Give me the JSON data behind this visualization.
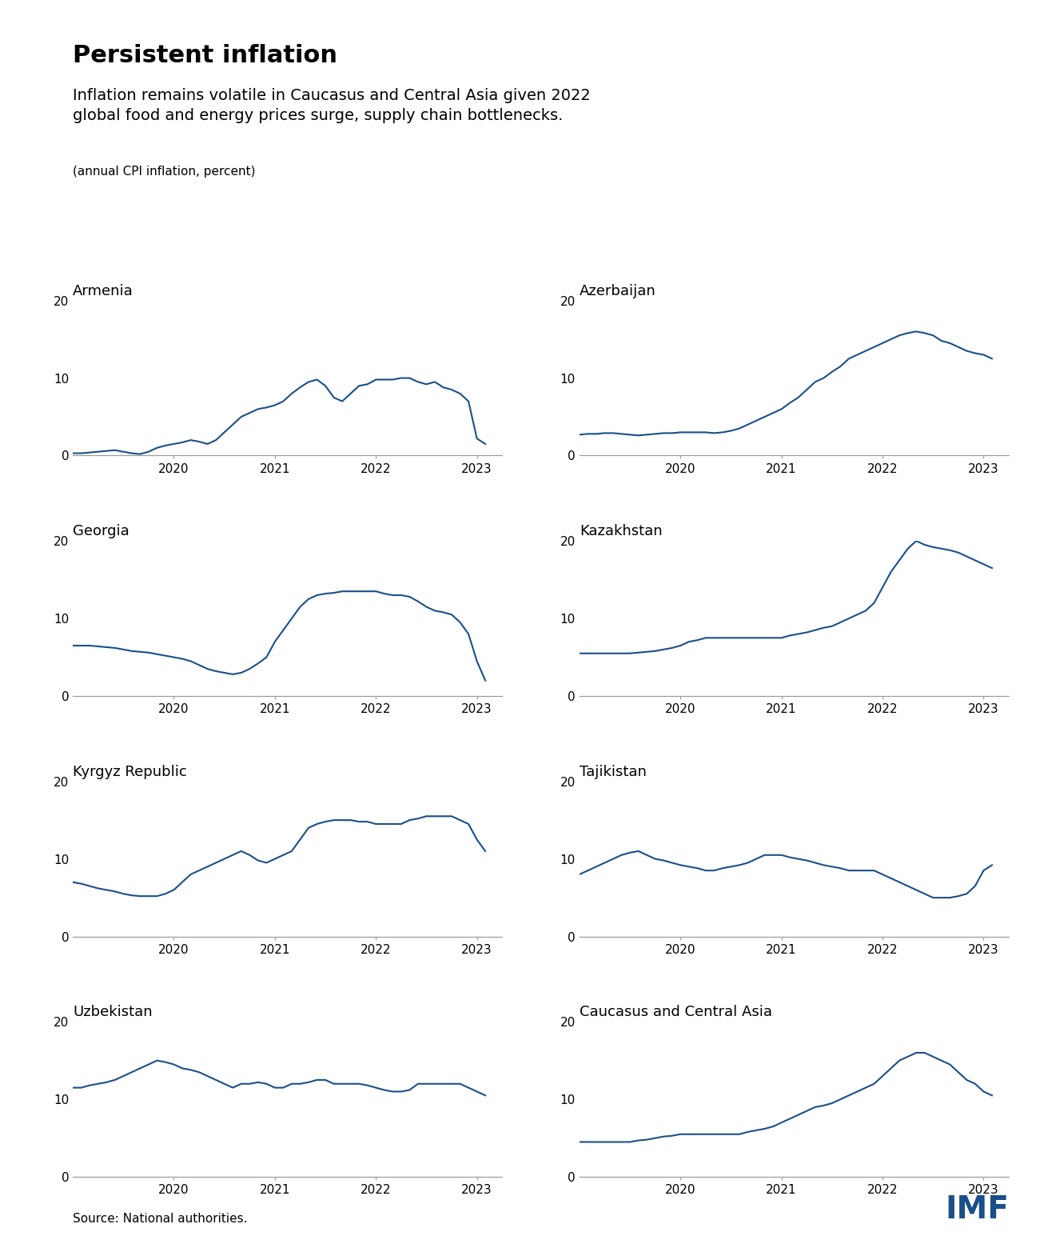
{
  "title": "Persistent inflation",
  "subtitle": "Inflation remains volatile in Caucasus and Central Asia given 2022\nglobal food and energy prices surge, supply chain bottlenecks.",
  "caption": "(annual CPI inflation, percent)",
  "source": "Source: National authorities.",
  "line_color": "#1b4f8a",
  "background_color": "#ffffff",
  "ylim": [
    0,
    20
  ],
  "yticks": [
    0,
    10,
    20
  ],
  "xlim": [
    2019.0,
    2023.25
  ],
  "xticks": [
    2020,
    2021,
    2022,
    2023
  ],
  "xticklabels": [
    "2020",
    "2021",
    "2022",
    "2023"
  ],
  "panels": [
    {
      "title": "Armenia",
      "y": [
        0.3,
        0.3,
        0.4,
        0.5,
        0.6,
        0.7,
        0.5,
        0.3,
        0.2,
        0.5,
        1.0,
        1.3,
        1.5,
        1.7,
        2.0,
        1.8,
        1.5,
        2.0,
        3.0,
        4.0,
        5.0,
        5.5,
        6.0,
        6.2,
        6.5,
        7.0,
        8.0,
        8.8,
        9.5,
        9.8,
        9.0,
        7.5,
        7.0,
        8.0,
        9.0,
        9.2,
        9.8,
        9.8,
        9.8,
        10.0,
        10.0,
        9.5,
        9.2,
        9.5,
        8.8,
        8.5,
        8.0,
        7.0,
        2.2,
        1.5
      ]
    },
    {
      "title": "Azerbaijan",
      "y": [
        2.7,
        2.8,
        2.8,
        2.9,
        2.9,
        2.8,
        2.7,
        2.6,
        2.7,
        2.8,
        2.9,
        2.9,
        3.0,
        3.0,
        3.0,
        3.0,
        2.9,
        3.0,
        3.2,
        3.5,
        4.0,
        4.5,
        5.0,
        5.5,
        6.0,
        6.8,
        7.5,
        8.5,
        9.5,
        10.0,
        10.8,
        11.5,
        12.5,
        13.0,
        13.5,
        14.0,
        14.5,
        15.0,
        15.5,
        15.8,
        16.0,
        15.8,
        15.5,
        14.8,
        14.5,
        14.0,
        13.5,
        13.2,
        13.0,
        12.5
      ]
    },
    {
      "title": "Georgia",
      "y": [
        6.5,
        6.5,
        6.5,
        6.4,
        6.3,
        6.2,
        6.0,
        5.8,
        5.7,
        5.6,
        5.4,
        5.2,
        5.0,
        4.8,
        4.5,
        4.0,
        3.5,
        3.2,
        3.0,
        2.8,
        3.0,
        3.5,
        4.2,
        5.0,
        7.0,
        8.5,
        10.0,
        11.5,
        12.5,
        13.0,
        13.2,
        13.3,
        13.5,
        13.5,
        13.5,
        13.5,
        13.5,
        13.2,
        13.0,
        13.0,
        12.8,
        12.2,
        11.5,
        11.0,
        10.8,
        10.5,
        9.5,
        8.0,
        4.5,
        2.0
      ]
    },
    {
      "title": "Kazakhstan",
      "y": [
        5.5,
        5.5,
        5.5,
        5.5,
        5.5,
        5.5,
        5.5,
        5.6,
        5.7,
        5.8,
        6.0,
        6.2,
        6.5,
        7.0,
        7.2,
        7.5,
        7.5,
        7.5,
        7.5,
        7.5,
        7.5,
        7.5,
        7.5,
        7.5,
        7.5,
        7.8,
        8.0,
        8.2,
        8.5,
        8.8,
        9.0,
        9.5,
        10.0,
        10.5,
        11.0,
        12.0,
        14.0,
        16.0,
        17.5,
        19.0,
        20.0,
        19.5,
        19.2,
        19.0,
        18.8,
        18.5,
        18.0,
        17.5,
        17.0,
        16.5
      ]
    },
    {
      "title": "Kyrgyz Republic",
      "y": [
        7.0,
        6.8,
        6.5,
        6.2,
        6.0,
        5.8,
        5.5,
        5.3,
        5.2,
        5.2,
        5.2,
        5.5,
        6.0,
        7.0,
        8.0,
        8.5,
        9.0,
        9.5,
        10.0,
        10.5,
        11.0,
        10.5,
        9.8,
        9.5,
        10.0,
        10.5,
        11.0,
        12.5,
        14.0,
        14.5,
        14.8,
        15.0,
        15.0,
        15.0,
        14.8,
        14.8,
        14.5,
        14.5,
        14.5,
        14.5,
        15.0,
        15.2,
        15.5,
        15.5,
        15.5,
        15.5,
        15.0,
        14.5,
        12.5,
        11.0
      ]
    },
    {
      "title": "Tajikistan",
      "y": [
        8.0,
        8.5,
        9.0,
        9.5,
        10.0,
        10.5,
        10.8,
        11.0,
        10.5,
        10.0,
        9.8,
        9.5,
        9.2,
        9.0,
        8.8,
        8.5,
        8.5,
        8.8,
        9.0,
        9.2,
        9.5,
        10.0,
        10.5,
        10.5,
        10.5,
        10.2,
        10.0,
        9.8,
        9.5,
        9.2,
        9.0,
        8.8,
        8.5,
        8.5,
        8.5,
        8.5,
        8.0,
        7.5,
        7.0,
        6.5,
        6.0,
        5.5,
        5.0,
        5.0,
        5.0,
        5.2,
        5.5,
        6.5,
        8.5,
        9.2
      ]
    },
    {
      "title": "Uzbekistan",
      "y": [
        11.5,
        11.5,
        11.8,
        12.0,
        12.2,
        12.5,
        13.0,
        13.5,
        14.0,
        14.5,
        15.0,
        14.8,
        14.5,
        14.0,
        13.8,
        13.5,
        13.0,
        12.5,
        12.0,
        11.5,
        12.0,
        12.0,
        12.2,
        12.0,
        11.5,
        11.5,
        12.0,
        12.0,
        12.2,
        12.5,
        12.5,
        12.0,
        12.0,
        12.0,
        12.0,
        11.8,
        11.5,
        11.2,
        11.0,
        11.0,
        11.2,
        12.0,
        12.0,
        12.0,
        12.0,
        12.0,
        12.0,
        11.5,
        11.0,
        10.5
      ]
    },
    {
      "title": "Caucasus and Central Asia",
      "y": [
        4.5,
        4.5,
        4.5,
        4.5,
        4.5,
        4.5,
        4.5,
        4.7,
        4.8,
        5.0,
        5.2,
        5.3,
        5.5,
        5.5,
        5.5,
        5.5,
        5.5,
        5.5,
        5.5,
        5.5,
        5.8,
        6.0,
        6.2,
        6.5,
        7.0,
        7.5,
        8.0,
        8.5,
        9.0,
        9.2,
        9.5,
        10.0,
        10.5,
        11.0,
        11.5,
        12.0,
        13.0,
        14.0,
        15.0,
        15.5,
        16.0,
        16.0,
        15.5,
        15.0,
        14.5,
        13.5,
        12.5,
        12.0,
        11.0,
        10.5
      ]
    }
  ]
}
